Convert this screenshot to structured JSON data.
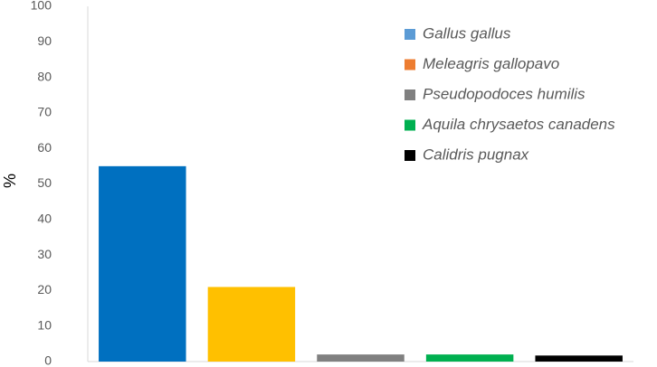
{
  "chart_data": {
    "type": "bar",
    "y_label": "%",
    "series": [
      {
        "name": "Gallus gallus",
        "color": "#0070c0",
        "legend_color": "#5b9bd5",
        "values": [
          55
        ]
      },
      {
        "name": "Meleagris gallopavo",
        "color": "#ffc000",
        "legend_color": "#ed7d31",
        "values": [
          21
        ]
      },
      {
        "name": "Pseudopodoces humilis",
        "color": "#808080",
        "legend_color": "#808080",
        "values": [
          2
        ]
      },
      {
        "name": "Aquila chrysaetos canadens",
        "color": "#00b050",
        "legend_color": "#00b050",
        "values": [
          2
        ]
      },
      {
        "name": "Calidris pugnax",
        "color": "#000000",
        "legend_color": "#000000",
        "values": [
          1.7
        ]
      }
    ],
    "ylim": [
      0,
      100
    ],
    "yticks": [
      0,
      10,
      20,
      30,
      40,
      50,
      60,
      70,
      80,
      90,
      100
    ],
    "grid": false,
    "legend": "top-right"
  }
}
